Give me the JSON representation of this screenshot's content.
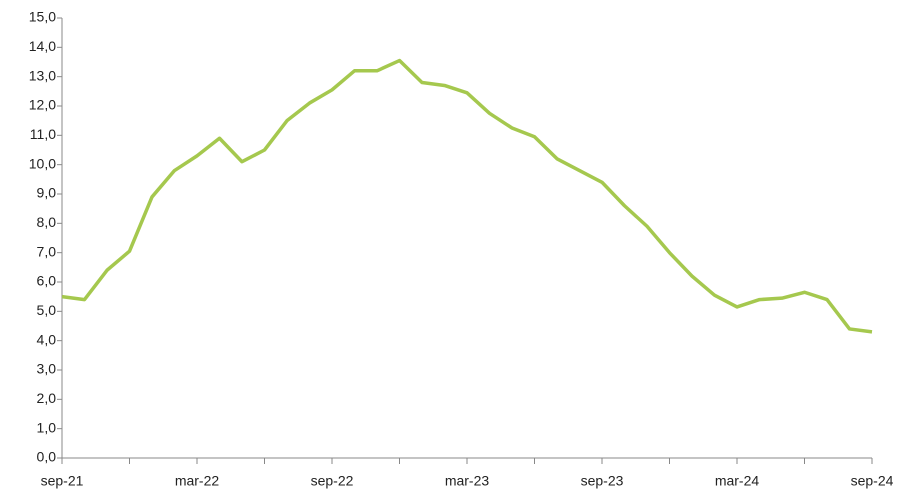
{
  "chart_data": {
    "type": "line",
    "categories": [
      "sep-21",
      null,
      null,
      null,
      null,
      null,
      "mar-22",
      null,
      null,
      null,
      null,
      null,
      "sep-22",
      null,
      null,
      null,
      null,
      null,
      "mar-23",
      null,
      null,
      null,
      null,
      null,
      "sep-23",
      null,
      null,
      null,
      null,
      null,
      "mar-24",
      null,
      null,
      null,
      null,
      null,
      "sep-24"
    ],
    "series": [
      {
        "color": "#a5c84e",
        "values": [
          5.5,
          5.4,
          6.4,
          7.05,
          8.9,
          9.8,
          10.3,
          10.9,
          10.1,
          10.5,
          11.5,
          12.1,
          12.55,
          13.2,
          13.2,
          13.55,
          12.8,
          12.7,
          12.45,
          11.75,
          11.25,
          10.95,
          10.2,
          9.8,
          9.4,
          8.6,
          7.9,
          7.0,
          6.2,
          5.55,
          5.15,
          5.4,
          5.45,
          5.65,
          5.4,
          4.4,
          4.3
        ]
      }
    ],
    "ylim": [
      0,
      15
    ],
    "yticks": [
      {
        "value": 0,
        "label": "0,0"
      },
      {
        "value": 1,
        "label": "1,0"
      },
      {
        "value": 2,
        "label": "2,0"
      },
      {
        "value": 3,
        "label": "3,0"
      },
      {
        "value": 4,
        "label": "4,0"
      },
      {
        "value": 5,
        "label": "5,0"
      },
      {
        "value": 6,
        "label": "6,0"
      },
      {
        "value": 7,
        "label": "7,0"
      },
      {
        "value": 8,
        "label": "8,0"
      },
      {
        "value": 9,
        "label": "9,0"
      },
      {
        "value": 10,
        "label": "10,0"
      },
      {
        "value": 11,
        "label": "11,0"
      },
      {
        "value": 12,
        "label": "12,0"
      },
      {
        "value": 13,
        "label": "13,0"
      },
      {
        "value": 14,
        "label": "14,0"
      },
      {
        "value": 15,
        "label": "15,0"
      }
    ],
    "grid": false
  }
}
